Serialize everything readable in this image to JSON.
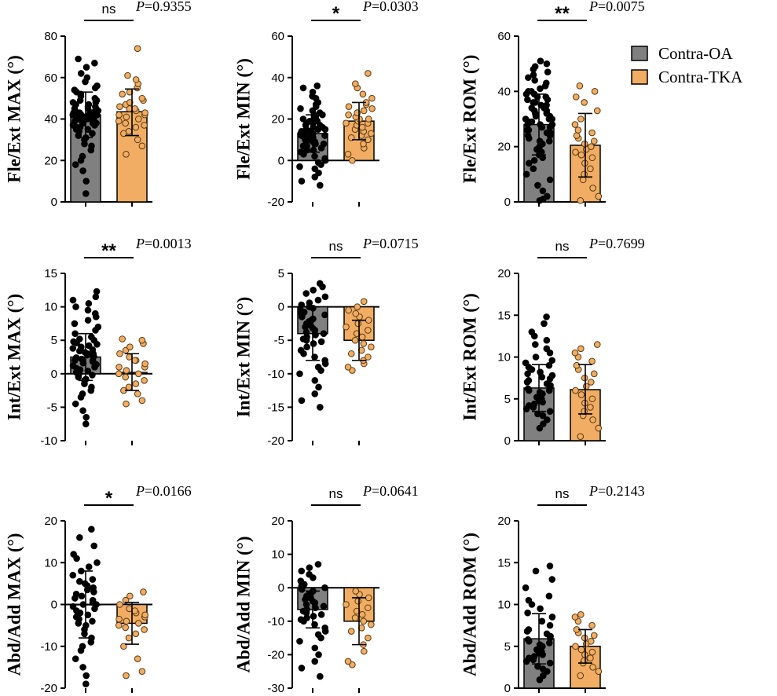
{
  "colors": {
    "oa_fill": "#808080",
    "tka_fill": "#F0AD63",
    "axis": "#000000",
    "oa_dot": "#000000",
    "tka_dot": "#F0AD63"
  },
  "legend": {
    "entries": [
      {
        "label": "Contra-OA",
        "color": "#808080"
      },
      {
        "label": "Contra-TKA",
        "color": "#F0AD63"
      }
    ],
    "position": "top-right"
  },
  "chart_data": [
    {
      "type": "bar",
      "ylabel": "Fle/Ext MAX (°)",
      "ylim": [
        0,
        80
      ],
      "yticks": [
        0,
        20,
        40,
        60,
        80
      ],
      "categories": [
        "Contra-OA",
        "Contra-TKA"
      ],
      "values": [
        42,
        43.5
      ],
      "sd": [
        [
          31,
          53
        ],
        [
          32,
          54.5
        ]
      ],
      "sig": "ns",
      "p_prefix": "P",
      "p_value": "=0.9355",
      "oa_points": [
        4,
        10,
        15,
        18,
        20,
        22,
        25,
        27,
        28,
        30,
        31,
        32,
        33,
        34,
        35,
        35,
        36,
        36,
        37,
        37,
        38,
        38,
        38,
        39,
        39,
        39,
        40,
        40,
        40,
        40,
        41,
        41,
        41,
        41,
        42,
        42,
        42,
        42,
        42,
        43,
        43,
        43,
        43,
        44,
        44,
        44,
        45,
        45,
        45,
        46,
        46,
        47,
        47,
        48,
        48,
        49,
        49,
        50,
        51,
        52,
        53,
        54,
        55,
        56,
        58,
        60,
        62,
        65,
        67,
        69
      ],
      "tka_points": [
        23,
        27,
        30,
        33,
        34,
        36,
        37,
        38,
        39,
        40,
        41,
        42,
        42,
        43,
        44,
        45,
        45,
        46,
        47,
        48,
        49,
        50,
        52,
        53,
        55,
        57,
        59,
        61,
        74
      ]
    },
    {
      "type": "bar",
      "ylabel": "Fle/Ext MIN (°)",
      "ylim": [
        -20,
        60
      ],
      "yticks": [
        -20,
        0,
        20,
        40,
        60
      ],
      "categories": [
        "Contra-OA",
        "Contra-TKA"
      ],
      "values": [
        13,
        19
      ],
      "sd": [
        [
          4,
          22
        ],
        [
          10,
          28
        ]
      ],
      "sig": "*",
      "p_prefix": "P",
      "p_value": "=0.0303",
      "oa_points": [
        -12,
        -10,
        -8,
        -6,
        -4,
        -3,
        -2,
        -1,
        0,
        1,
        2,
        3,
        4,
        5,
        5,
        6,
        6,
        7,
        7,
        8,
        8,
        9,
        9,
        9,
        10,
        10,
        10,
        11,
        11,
        11,
        12,
        12,
        12,
        13,
        13,
        13,
        14,
        14,
        14,
        15,
        15,
        15,
        16,
        16,
        17,
        17,
        18,
        18,
        19,
        19,
        20,
        20,
        21,
        21,
        22,
        22,
        23,
        24,
        25,
        26,
        27,
        28,
        30,
        31,
        33,
        35,
        36
      ],
      "tka_points": [
        0,
        3,
        6,
        8,
        10,
        11,
        12,
        13,
        14,
        15,
        16,
        17,
        18,
        18,
        19,
        20,
        20,
        21,
        22,
        23,
        24,
        25,
        26,
        27,
        28,
        30,
        32,
        35,
        37,
        42
      ]
    },
    {
      "type": "bar",
      "ylabel": "Fle/Ext ROM (°)",
      "ylim": [
        0,
        60
      ],
      "yticks": [
        0,
        20,
        40,
        60
      ],
      "categories": [
        "Contra-OA",
        "Contra-TKA"
      ],
      "values": [
        28,
        20.5
      ],
      "sd": [
        [
          17,
          39
        ],
        [
          9,
          32
        ]
      ],
      "sig": "**",
      "p_prefix": "P",
      "p_value": "=0.0075",
      "oa_points": [
        0.5,
        1,
        2,
        4,
        6,
        8,
        10,
        12,
        14,
        15,
        16,
        17,
        18,
        19,
        20,
        21,
        22,
        22,
        23,
        24,
        24,
        25,
        25,
        26,
        26,
        27,
        27,
        28,
        28,
        28,
        29,
        29,
        30,
        30,
        30,
        31,
        31,
        32,
        32,
        33,
        33,
        34,
        34,
        35,
        35,
        36,
        36,
        37,
        37,
        38,
        38,
        39,
        39,
        40,
        40,
        41,
        42,
        43,
        44,
        45,
        46,
        47,
        48,
        49,
        50,
        51
      ],
      "tka_points": [
        0.5,
        2,
        5,
        8,
        10,
        12,
        14,
        16,
        17,
        18,
        19,
        20,
        21,
        22,
        23,
        24,
        25,
        26,
        28,
        30,
        33,
        36,
        38,
        40,
        42
      ]
    },
    {
      "type": "bar",
      "ylabel": "Int/Ext MAX (°)",
      "ylim": [
        -10,
        15
      ],
      "yticks": [
        -10,
        -5,
        0,
        5,
        10,
        15
      ],
      "categories": [
        "Contra-OA",
        "Contra-TKA"
      ],
      "values": [
        2.5,
        0.2
      ],
      "sd": [
        [
          -1,
          6
        ],
        [
          -2.5,
          3
        ]
      ],
      "sig": "**",
      "p_prefix": "P",
      "p_value": "=0.0013",
      "oa_points": [
        -7.5,
        -6.5,
        -5.5,
        -4.5,
        -3.5,
        -3,
        -2.5,
        -2,
        -1.5,
        -1,
        -0.8,
        -0.5,
        -0.2,
        0,
        0.2,
        0.4,
        0.6,
        0.8,
        1,
        1.2,
        1.4,
        1.6,
        1.8,
        2,
        2,
        2.2,
        2.4,
        2.6,
        2.8,
        3,
        3,
        3.2,
        3.4,
        3.6,
        3.8,
        4,
        4.2,
        4.4,
        4.6,
        4.8,
        5,
        5.2,
        5.5,
        6,
        6.5,
        7,
        7.5,
        8,
        8.5,
        9,
        9.5,
        10,
        10.5,
        11,
        11.5,
        12.3
      ],
      "tka_points": [
        -4.5,
        -4,
        -3,
        -2.5,
        -2,
        -1.5,
        -1,
        -0.5,
        0,
        0,
        0.5,
        1,
        1,
        1.5,
        2,
        2,
        2.5,
        3,
        3.5,
        4,
        4.5,
        5,
        5.2
      ]
    },
    {
      "type": "bar",
      "ylabel": "Int/Ext MIN (°)",
      "ylim": [
        -20,
        5
      ],
      "yticks": [
        -20,
        -15,
        -10,
        -5,
        0,
        5
      ],
      "categories": [
        "Contra-OA",
        "Contra-TKA"
      ],
      "values": [
        -4,
        -5
      ],
      "sd": [
        [
          -8,
          0
        ],
        [
          -8,
          -2
        ]
      ],
      "sig": "ns",
      "p_prefix": "P",
      "p_value": "=0.0715",
      "oa_points": [
        -15,
        -14,
        -13,
        -12,
        -11,
        -10,
        -9.5,
        -9,
        -8.5,
        -8,
        -7.5,
        -7,
        -6.5,
        -6,
        -5.5,
        -5.2,
        -5,
        -4.8,
        -4.5,
        -4.2,
        -4,
        -3.8,
        -3.5,
        -3.2,
        -3,
        -2.8,
        -2.5,
        -2.2,
        -2,
        -1.8,
        -1.5,
        -1.2,
        -1,
        -0.8,
        -0.5,
        -0.2,
        0,
        0.3,
        0.6,
        1,
        1.5,
        2,
        2.5,
        3,
        3.5
      ],
      "tka_points": [
        -9.5,
        -9,
        -8.5,
        -8,
        -7.5,
        -7,
        -6.5,
        -6,
        -5.5,
        -5,
        -4.5,
        -4,
        -3.5,
        -3,
        -2.5,
        -2,
        -1.5,
        -1,
        -0.5,
        0,
        0.8
      ]
    },
    {
      "type": "bar",
      "ylabel": "Int/Ext ROM (°)",
      "ylim": [
        0,
        20
      ],
      "yticks": [
        0,
        5,
        10,
        15,
        20
      ],
      "categories": [
        "Contra-OA",
        "Contra-TKA"
      ],
      "values": [
        6.3,
        6.1
      ],
      "sd": [
        [
          3.5,
          9.1
        ],
        [
          3.2,
          9.1
        ]
      ],
      "sig": "ns",
      "p_prefix": "P",
      "p_value": "=0.7699",
      "oa_points": [
        1.5,
        2,
        2.5,
        3,
        3.2,
        3.5,
        3.8,
        4,
        4.2,
        4.4,
        4.6,
        4.8,
        5,
        5.2,
        5.4,
        5.6,
        5.8,
        6,
        6,
        6.2,
        6.4,
        6.6,
        6.8,
        7,
        7.2,
        7.4,
        7.6,
        7.8,
        8,
        8.2,
        8.5,
        8.8,
        9,
        9.3,
        9.6,
        10,
        10.5,
        11,
        11.5,
        12,
        12.5,
        13,
        14,
        14.8
      ],
      "tka_points": [
        0.5,
        1.5,
        2.5,
        3,
        3.5,
        4,
        4.5,
        5,
        5.5,
        6,
        6.5,
        7,
        7.5,
        8,
        8.5,
        9,
        9.5,
        10,
        10.5,
        11,
        11.5
      ]
    },
    {
      "type": "bar",
      "ylabel": "Abd/Add MAX (°)",
      "ylim": [
        -20,
        20
      ],
      "yticks": [
        -20,
        -10,
        0,
        10,
        20
      ],
      "categories": [
        "Contra-OA",
        "Contra-TKA"
      ],
      "values": [
        0,
        -4.5
      ],
      "sd": [
        [
          -8,
          8
        ],
        [
          -9.5,
          0.5
        ]
      ],
      "sig": "*",
      "p_prefix": "P",
      "p_value": "=0.0166",
      "oa_points": [
        -19,
        -17,
        -15,
        -13,
        -11,
        -10,
        -9,
        -8,
        -7,
        -6,
        -5,
        -4.5,
        -4,
        -3.5,
        -3,
        -2.5,
        -2,
        -1.5,
        -1,
        -0.5,
        0,
        0,
        0.5,
        1,
        1.5,
        2,
        2.5,
        3,
        3.5,
        4,
        4.5,
        5,
        5.5,
        6,
        7,
        8,
        9,
        10,
        11,
        12,
        14,
        16,
        18
      ],
      "tka_points": [
        -17,
        -16,
        -13,
        -10,
        -8,
        -7,
        -6,
        -5.5,
        -5,
        -4.5,
        -4,
        -3.5,
        -3,
        -2.5,
        -2,
        -1.5,
        -1,
        0,
        1,
        2,
        3
      ]
    },
    {
      "type": "bar",
      "ylabel": "Abd/Add MIN (°)",
      "ylim": [
        -30,
        20
      ],
      "yticks": [
        -30,
        -20,
        -10,
        0,
        10,
        20
      ],
      "categories": [
        "Contra-OA",
        "Contra-TKA"
      ],
      "values": [
        -6.5,
        -10
      ],
      "sd": [
        [
          -12,
          -1
        ],
        [
          -17,
          -3
        ]
      ],
      "sig": "ns",
      "p_prefix": "P",
      "p_value": "=0.0641",
      "oa_points": [
        -26.5,
        -24,
        -22,
        -20,
        -18,
        -16,
        -15,
        -14,
        -13,
        -12,
        -11,
        -10,
        -9.5,
        -9,
        -8.5,
        -8,
        -7.5,
        -7,
        -6.5,
        -6,
        -5.5,
        -5,
        -4.5,
        -4,
        -3.5,
        -3,
        -2.5,
        -2,
        -1.5,
        -1,
        -0.5,
        0,
        0.5,
        1,
        2,
        3,
        4,
        5,
        6,
        7
      ],
      "tka_points": [
        -23,
        -22,
        -19,
        -17,
        -15,
        -13,
        -12,
        -11,
        -10,
        -9,
        -8,
        -7,
        -6,
        -5,
        -4,
        -3,
        -2,
        -1
      ]
    },
    {
      "type": "bar",
      "ylabel": "Abd/Add ROM (°)",
      "ylim": [
        0,
        20
      ],
      "yticks": [
        0,
        5,
        10,
        15,
        20
      ],
      "categories": [
        "Contra-OA",
        "Contra-TKA"
      ],
      "values": [
        5.9,
        5
      ],
      "sd": [
        [
          2.9,
          8.9
        ],
        [
          3,
          7
        ]
      ],
      "sig": "ns",
      "p_prefix": "P",
      "p_value": "=0.2143",
      "oa_points": [
        1,
        1.5,
        2,
        2.3,
        2.6,
        3,
        3.2,
        3.4,
        3.6,
        3.8,
        4,
        4.2,
        4.4,
        4.6,
        4.8,
        5,
        5.2,
        5.4,
        5.6,
        5.8,
        6,
        6.2,
        6.5,
        6.8,
        7,
        7.5,
        8,
        8.5,
        9,
        9.5,
        10,
        10.5,
        11,
        12,
        13,
        14,
        14.6
      ],
      "tka_points": [
        1.5,
        2,
        2.5,
        3,
        3.3,
        3.6,
        4,
        4.3,
        4.6,
        5,
        5.3,
        5.6,
        6,
        6.3,
        6.6,
        7,
        7.5,
        8,
        8.5,
        8.8
      ]
    }
  ]
}
